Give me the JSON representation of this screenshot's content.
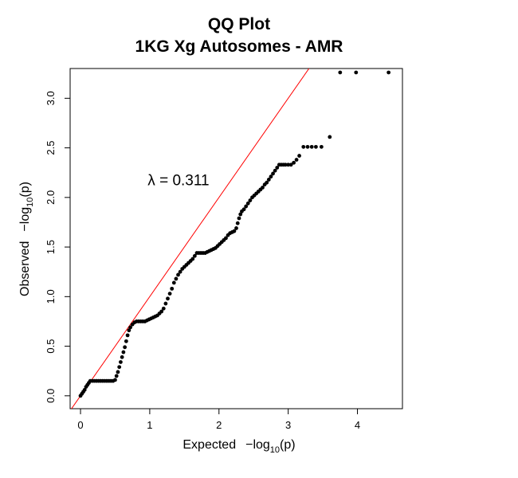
{
  "chart_data": {
    "type": "scatter",
    "title": "QQ Plot",
    "subtitle": "1KG Xg Autosomes - AMR",
    "xlabel": {
      "prefix": "Expected",
      "text": "−log",
      "subscript": "10",
      "suffix": "(p)"
    },
    "ylabel": {
      "prefix": "Observed",
      "text": "−log",
      "subscript": "10",
      "suffix": "(p)"
    },
    "xlim": [
      -0.15,
      4.65
    ],
    "ylim": [
      -0.13,
      3.3
    ],
    "xticks": [
      0,
      1,
      2,
      3,
      4
    ],
    "xtick_labels": [
      "0",
      "1",
      "2",
      "3",
      "4"
    ],
    "yticks": [
      0.0,
      0.5,
      1.0,
      1.5,
      2.0,
      2.5,
      3.0
    ],
    "ytick_labels": [
      "0.0",
      "0.5",
      "1.0",
      "1.5",
      "2.0",
      "2.5",
      "3.0"
    ],
    "annotation": {
      "text": "λ = 0.311",
      "x": 0.97,
      "y": 2.18
    },
    "reference_line": {
      "slope": 1,
      "intercept": 0,
      "color": "#ff0000"
    },
    "point_color": "#000000",
    "points": [
      [
        0.0,
        0.0
      ],
      [
        0.02,
        0.02
      ],
      [
        0.04,
        0.04
      ],
      [
        0.06,
        0.06
      ],
      [
        0.08,
        0.09
      ],
      [
        0.1,
        0.11
      ],
      [
        0.12,
        0.13
      ],
      [
        0.14,
        0.15
      ],
      [
        0.17,
        0.15
      ],
      [
        0.2,
        0.15
      ],
      [
        0.23,
        0.15
      ],
      [
        0.26,
        0.15
      ],
      [
        0.29,
        0.15
      ],
      [
        0.32,
        0.15
      ],
      [
        0.35,
        0.15
      ],
      [
        0.38,
        0.15
      ],
      [
        0.41,
        0.15
      ],
      [
        0.44,
        0.15
      ],
      [
        0.47,
        0.15
      ],
      [
        0.5,
        0.16
      ],
      [
        0.52,
        0.2
      ],
      [
        0.54,
        0.24
      ],
      [
        0.56,
        0.29
      ],
      [
        0.58,
        0.34
      ],
      [
        0.6,
        0.39
      ],
      [
        0.62,
        0.44
      ],
      [
        0.64,
        0.49
      ],
      [
        0.66,
        0.55
      ],
      [
        0.68,
        0.61
      ],
      [
        0.7,
        0.66
      ],
      [
        0.72,
        0.69
      ],
      [
        0.75,
        0.72
      ],
      [
        0.78,
        0.74
      ],
      [
        0.81,
        0.75
      ],
      [
        0.84,
        0.75
      ],
      [
        0.87,
        0.75
      ],
      [
        0.9,
        0.75
      ],
      [
        0.93,
        0.75
      ],
      [
        0.96,
        0.76
      ],
      [
        0.99,
        0.77
      ],
      [
        1.02,
        0.78
      ],
      [
        1.05,
        0.79
      ],
      [
        1.08,
        0.8
      ],
      [
        1.11,
        0.81
      ],
      [
        1.14,
        0.83
      ],
      [
        1.17,
        0.85
      ],
      [
        1.2,
        0.88
      ],
      [
        1.23,
        0.93
      ],
      [
        1.26,
        0.98
      ],
      [
        1.29,
        1.03
      ],
      [
        1.32,
        1.08
      ],
      [
        1.35,
        1.14
      ],
      [
        1.38,
        1.18
      ],
      [
        1.41,
        1.22
      ],
      [
        1.44,
        1.25
      ],
      [
        1.47,
        1.28
      ],
      [
        1.5,
        1.3
      ],
      [
        1.53,
        1.32
      ],
      [
        1.56,
        1.34
      ],
      [
        1.59,
        1.36
      ],
      [
        1.62,
        1.38
      ],
      [
        1.65,
        1.41
      ],
      [
        1.68,
        1.44
      ],
      [
        1.71,
        1.44
      ],
      [
        1.74,
        1.44
      ],
      [
        1.77,
        1.44
      ],
      [
        1.8,
        1.44
      ],
      [
        1.83,
        1.45
      ],
      [
        1.86,
        1.46
      ],
      [
        1.89,
        1.47
      ],
      [
        1.92,
        1.48
      ],
      [
        1.95,
        1.49
      ],
      [
        1.98,
        1.51
      ],
      [
        2.01,
        1.53
      ],
      [
        2.04,
        1.55
      ],
      [
        2.07,
        1.57
      ],
      [
        2.1,
        1.59
      ],
      [
        2.13,
        1.62
      ],
      [
        2.16,
        1.64
      ],
      [
        2.19,
        1.65
      ],
      [
        2.22,
        1.66
      ],
      [
        2.25,
        1.69
      ],
      [
        2.27,
        1.74
      ],
      [
        2.29,
        1.79
      ],
      [
        2.31,
        1.83
      ],
      [
        2.33,
        1.86
      ],
      [
        2.36,
        1.88
      ],
      [
        2.39,
        1.91
      ],
      [
        2.42,
        1.94
      ],
      [
        2.45,
        1.97
      ],
      [
        2.48,
        2.0
      ],
      [
        2.51,
        2.02
      ],
      [
        2.54,
        2.04
      ],
      [
        2.57,
        2.06
      ],
      [
        2.6,
        2.08
      ],
      [
        2.63,
        2.1
      ],
      [
        2.66,
        2.13
      ],
      [
        2.69,
        2.15
      ],
      [
        2.72,
        2.18
      ],
      [
        2.75,
        2.21
      ],
      [
        2.78,
        2.24
      ],
      [
        2.81,
        2.27
      ],
      [
        2.84,
        2.3
      ],
      [
        2.87,
        2.33
      ],
      [
        2.9,
        2.33
      ],
      [
        2.93,
        2.33
      ],
      [
        2.96,
        2.33
      ],
      [
        3.0,
        2.33
      ],
      [
        3.04,
        2.33
      ],
      [
        3.08,
        2.35
      ],
      [
        3.12,
        2.38
      ],
      [
        3.16,
        2.42
      ],
      [
        3.22,
        2.51
      ],
      [
        3.28,
        2.51
      ],
      [
        3.34,
        2.51
      ],
      [
        3.4,
        2.51
      ],
      [
        3.48,
        2.51
      ],
      [
        3.6,
        2.61
      ],
      [
        3.75,
        3.26
      ],
      [
        3.98,
        3.26
      ],
      [
        4.45,
        3.26
      ]
    ]
  }
}
